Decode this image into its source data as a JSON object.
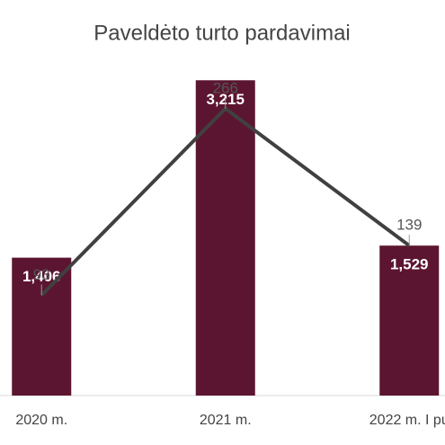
{
  "chart_data": {
    "type": "bar-line",
    "title": "Paveldėto turto pardavimai",
    "categories": [
      "2020 m.",
      "2021 m.",
      "2022 m. I pu"
    ],
    "series": [
      {
        "type": "bar",
        "color": "#5c1530",
        "values": [
          1406,
          3215,
          1529
        ],
        "value_labels": [
          "1,406",
          "3,215",
          "1,529"
        ]
      },
      {
        "type": "line",
        "axis": "y2",
        "color": "#404040",
        "values": [
          93,
          266,
          139
        ]
      }
    ],
    "ylim": [
      0,
      3300
    ],
    "y2lim": [
      0,
      300
    ]
  }
}
